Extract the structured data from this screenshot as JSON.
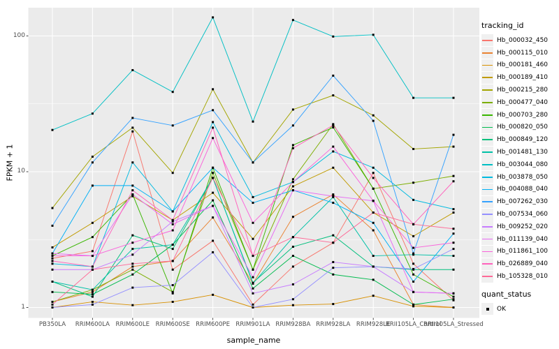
{
  "axes": {
    "y": {
      "label": "FPKM + 1",
      "scale": "log10",
      "ticks": [
        "100",
        "10",
        "1"
      ],
      "tick_values": [
        100,
        10,
        1
      ]
    },
    "x": {
      "label": "sample_name"
    }
  },
  "style": {
    "panel_bg": "#EBEBEB",
    "gridline_color": "#FFFFFF",
    "tick_label_color": "#4D4D4D",
    "point_color": "#000000"
  },
  "legend": {
    "color_title": "tracking_id",
    "shape_title": "quant_status",
    "shape_items": [
      {
        "label": "OK",
        "shape": "filled-black-square"
      }
    ]
  },
  "chart_data": {
    "type": "line",
    "title": "",
    "xlabel": "sample_name",
    "ylabel": "FPKM + 1",
    "y_scale": "log10",
    "ylim": [
      1,
      160
    ],
    "grid": true,
    "legend_position": "right",
    "point_shape": "black-square",
    "categories": [
      "PB350LA",
      "RRIM600LA",
      "RRIM600LE",
      "RRIM600SE",
      "RRIM600PE",
      "RRIM901LA",
      "RRIM928BA",
      "RRIM928LA",
      "RRIM928LE",
      "RRII105LA_Control",
      "RRII105LA_Stressed"
    ],
    "series": [
      {
        "name": "Hb_000032_450",
        "color": "#F8766D",
        "values": [
          2.3,
          2.6,
          19.8,
          1.9,
          3.1,
          1.05,
          2.0,
          3.0,
          9.8,
          2.1,
          1.13
        ]
      },
      {
        "name": "Hb_000115_010",
        "color": "#EA8331",
        "values": [
          1.1,
          1.3,
          2.0,
          2.2,
          4.6,
          1.5,
          4.65,
          6.8,
          3.7,
          1.05,
          1.0
        ]
      },
      {
        "name": "Hb_000181_460",
        "color": "#D89000",
        "values": [
          1.0,
          1.1,
          1.04,
          1.1,
          1.24,
          1.0,
          1.04,
          1.06,
          1.22,
          1.02,
          1.0
        ]
      },
      {
        "name": "Hb_000189_410",
        "color": "#C09B00",
        "values": [
          2.77,
          4.2,
          6.6,
          4.4,
          7.0,
          3.2,
          7.8,
          10.7,
          5.0,
          3.35,
          5.0
        ]
      },
      {
        "name": "Hb_000215_280",
        "color": "#A3A500",
        "values": [
          5.4,
          12.9,
          21.1,
          9.8,
          40.5,
          11.7,
          28.7,
          36.5,
          26.0,
          14.7,
          15.3
        ]
      },
      {
        "name": "Hb_000477_040",
        "color": "#7CAE00",
        "values": [
          1.1,
          1.35,
          1.9,
          1.3,
          9.8,
          1.9,
          8.8,
          22.4,
          7.5,
          8.3,
          9.3
        ]
      },
      {
        "name": "Hb_000703_280",
        "color": "#39B600",
        "values": [
          2.4,
          3.3,
          6.8,
          1.27,
          10.7,
          1.9,
          15.7,
          21.2,
          7.5,
          1.75,
          1.2
        ]
      },
      {
        "name": "Hb_000820_050",
        "color": "#00BB4E",
        "values": [
          1.3,
          1.25,
          1.75,
          2.9,
          6.15,
          1.38,
          2.4,
          1.75,
          1.6,
          1.05,
          1.15
        ]
      },
      {
        "name": "Hb_000849_120",
        "color": "#00BF7D",
        "values": [
          1.55,
          1.2,
          3.4,
          2.7,
          9.0,
          1.52,
          2.8,
          3.4,
          2.0,
          1.9,
          1.9
        ]
      },
      {
        "name": "Hb_001481_130",
        "color": "#00C1A7",
        "values": [
          1.55,
          1.35,
          2.7,
          2.9,
          9.0,
          1.5,
          3.3,
          6.5,
          2.4,
          2.45,
          2.4
        ]
      },
      {
        "name": "Hb_003044_080",
        "color": "#00BFC4",
        "values": [
          20.3,
          26.8,
          56.0,
          38.7,
          137.0,
          23.4,
          131.0,
          99.0,
          102.0,
          35.0,
          35.0
        ]
      },
      {
        "name": "Hb_003878_050",
        "color": "#00BAE0",
        "values": [
          2.1,
          2.0,
          11.7,
          5.1,
          23.2,
          6.5,
          8.4,
          14.1,
          10.7,
          6.2,
          5.3
        ]
      },
      {
        "name": "Hb_004088_040",
        "color": "#00B0F6",
        "values": [
          2.5,
          7.9,
          7.9,
          5.1,
          10.7,
          5.9,
          7.3,
          5.9,
          4.2,
          1.55,
          3.5
        ]
      },
      {
        "name": "Hb_007262_030",
        "color": "#35A2FF",
        "values": [
          4.0,
          11.7,
          24.9,
          21.9,
          28.4,
          11.7,
          21.9,
          51.0,
          23.7,
          2.5,
          18.7
        ]
      },
      {
        "name": "Hb_007534_060",
        "color": "#9590FF",
        "values": [
          1.0,
          1.05,
          1.4,
          1.46,
          2.55,
          1.0,
          1.15,
          1.96,
          2.0,
          1.92,
          2.7
        ]
      },
      {
        "name": "Hb_009252_020",
        "color": "#C77CFF",
        "values": [
          1.9,
          1.9,
          2.45,
          4.3,
          5.6,
          1.27,
          1.48,
          2.16,
          2.0,
          1.3,
          1.27
        ]
      },
      {
        "name": "Hb_011139_040",
        "color": "#E76BF3",
        "values": [
          2.5,
          2.4,
          6.8,
          4.1,
          5.6,
          1.67,
          7.3,
          6.6,
          6.1,
          1.3,
          1.27
        ]
      },
      {
        "name": "Hb_011861_100",
        "color": "#FA62DB",
        "values": [
          2.4,
          2.4,
          3.0,
          3.7,
          17.7,
          4.2,
          8.4,
          15.3,
          6.1,
          2.75,
          3.0
        ]
      },
      {
        "name": "Hb_026889_040",
        "color": "#FF62BC",
        "values": [
          2.2,
          2.0,
          7.3,
          4.4,
          21.1,
          2.4,
          14.9,
          22.0,
          9.0,
          4.1,
          8.5
        ]
      },
      {
        "name": "Hb_105328_010",
        "color": "#FF6A98",
        "values": [
          1.05,
          1.9,
          2.1,
          2.2,
          9.0,
          2.4,
          3.3,
          3.0,
          5.0,
          4.1,
          3.8
        ]
      }
    ]
  }
}
